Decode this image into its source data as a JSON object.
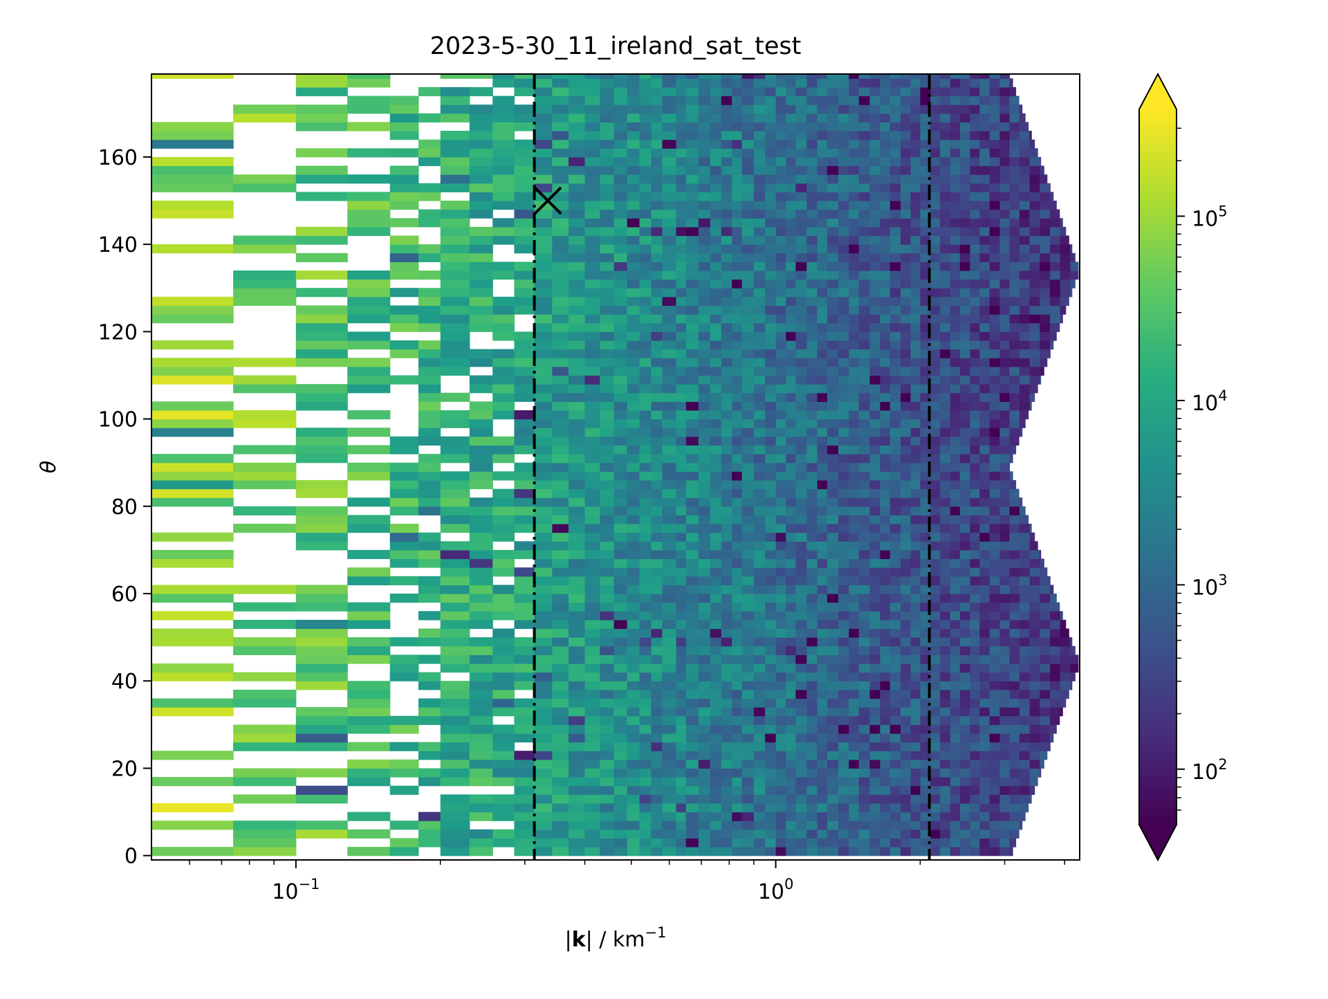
{
  "chart_data": {
    "type": "heatmap",
    "title": "2023-5-30_11_ireland_sat_test",
    "xlabel_parts": [
      "|",
      "k",
      "| / km",
      "−1"
    ],
    "ylabel": "θ",
    "x_scale": "log",
    "xlim": [
      0.05,
      4.3
    ],
    "ylim": [
      -1,
      179
    ],
    "x_ticks": [
      {
        "value": 0.1,
        "base": "10",
        "exp": "−1"
      },
      {
        "value": 1.0,
        "base": "10",
        "exp": "0"
      }
    ],
    "y_ticks": [
      0,
      20,
      40,
      60,
      80,
      100,
      120,
      140,
      160
    ],
    "colorbar": {
      "scale": "log",
      "range": [
        50,
        380000
      ],
      "ticks": [
        {
          "value": 100,
          "base": "10",
          "exp": "2"
        },
        {
          "value": 1000,
          "base": "10",
          "exp": "3"
        },
        {
          "value": 10000,
          "base": "10",
          "exp": "4"
        },
        {
          "value": 100000,
          "base": "10",
          "exp": "5"
        }
      ],
      "colormap": "viridis",
      "extend": "both"
    },
    "vertical_lines": [
      {
        "x": 0.314,
        "style": "dash-dot",
        "color": "#000000"
      },
      {
        "x": 2.09,
        "style": "dash-dot",
        "color": "#000000"
      }
    ],
    "marker": {
      "x": 0.335,
      "y": 150,
      "symbol": "x",
      "color": "#000000"
    },
    "k_bin_edges": [
      0.05,
      0.074,
      0.1,
      0.128,
      0.157,
      0.18,
      0.2,
      0.23,
      0.257,
      0.285,
      0.314,
      0.342,
      0.37,
      0.4,
      0.43,
      0.46,
      0.49,
      0.52,
      0.55,
      0.58,
      0.62,
      0.65,
      0.69,
      0.73,
      0.77,
      0.81,
      0.85,
      0.9,
      0.95,
      1.0,
      1.05,
      1.1,
      1.16,
      1.22,
      1.28,
      1.35,
      1.42,
      1.49,
      1.57,
      1.65,
      1.73,
      1.82,
      1.91,
      2.0,
      2.1,
      2.2,
      2.31,
      2.42,
      2.54,
      2.66,
      2.79,
      2.93,
      3.07
    ],
    "theta_bin_width": 2,
    "outer_k_edge_at_theta": [
      [
        0,
        3.07
      ],
      [
        90,
        3.07
      ],
      [
        134,
        4.3
      ],
      [
        44,
        4.3
      ],
      [
        180,
        3.07
      ]
    ],
    "colors": {
      "background": "#ffffff",
      "axes": "#000000"
    }
  }
}
